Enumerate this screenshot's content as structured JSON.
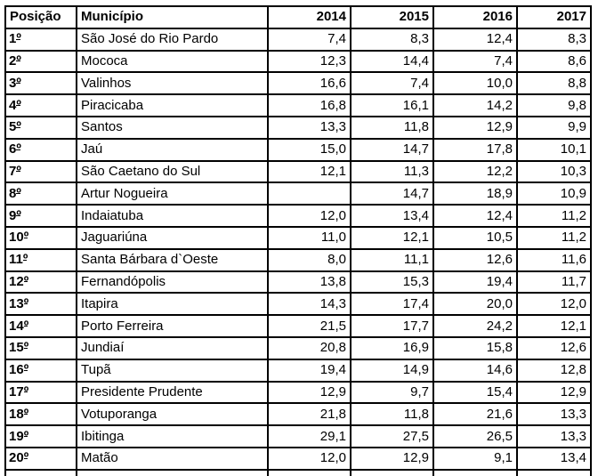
{
  "colors": {
    "background": "#ffffff",
    "border": "#000000",
    "text": "#000000"
  },
  "chart_data": {
    "type": "table",
    "columns": [
      "Posição",
      "Município",
      "2014",
      "2015",
      "2016",
      "2017"
    ],
    "rows": [
      [
        "1º",
        "São José do Rio Pardo",
        "7,4",
        "8,3",
        "12,4",
        "8,3"
      ],
      [
        "2º",
        "Mococa",
        "12,3",
        "14,4",
        "7,4",
        "8,6"
      ],
      [
        "3º",
        "Valinhos",
        "16,6",
        "7,4",
        "10,0",
        "8,8"
      ],
      [
        "4º",
        "Piracicaba",
        "16,8",
        "16,1",
        "14,2",
        "9,8"
      ],
      [
        "5º",
        "Santos",
        "13,3",
        "11,8",
        "12,9",
        "9,9"
      ],
      [
        "6º",
        "Jaú",
        "15,0",
        "14,7",
        "17,8",
        "10,1"
      ],
      [
        "7º",
        "São Caetano do Sul",
        "12,1",
        "11,3",
        "12,2",
        "10,3"
      ],
      [
        "8º",
        "Artur Nogueira",
        "",
        "14,7",
        "18,9",
        "10,9"
      ],
      [
        "9º",
        "Indaiatuba",
        "12,0",
        "13,4",
        "12,4",
        "11,2"
      ],
      [
        "10º",
        "Jaguariúna",
        "11,0",
        "12,1",
        "10,5",
        "11,2"
      ],
      [
        "11º",
        "Santa Bárbara d`Oeste",
        "8,0",
        "11,1",
        "12,6",
        "11,6"
      ],
      [
        "12º",
        "Fernandópolis",
        "13,8",
        "15,3",
        "19,4",
        "11,7"
      ],
      [
        "13º",
        "Itapira",
        "14,3",
        "17,4",
        "20,0",
        "12,0"
      ],
      [
        "14º",
        "Porto Ferreira",
        "21,5",
        "17,7",
        "24,2",
        "12,1"
      ],
      [
        "15º",
        "Jundiaí",
        "20,8",
        "16,9",
        "15,8",
        "12,6"
      ],
      [
        "16º",
        "Tupã",
        "19,4",
        "14,9",
        "14,6",
        "12,8"
      ],
      [
        "17º",
        "Presidente Prudente",
        "12,9",
        "9,7",
        "15,4",
        "12,9"
      ],
      [
        "18º",
        "Votuporanga",
        "21,8",
        "11,8",
        "21,6",
        "13,3"
      ],
      [
        "19º",
        "Ibitinga",
        "29,1",
        "27,5",
        "26,5",
        "13,3"
      ],
      [
        "20º",
        "Matão",
        "12,0",
        "12,9",
        "9,1",
        "13,4"
      ]
    ]
  }
}
